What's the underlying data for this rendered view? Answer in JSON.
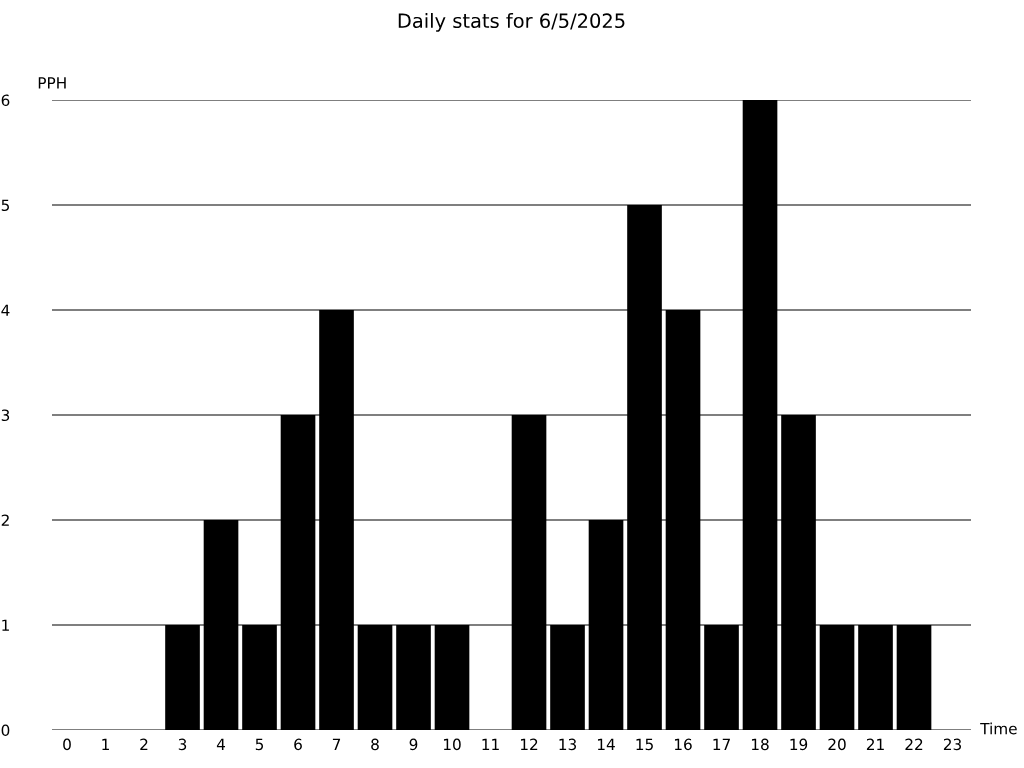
{
  "chart_data": {
    "type": "bar",
    "title": "Daily stats for 6/5/2025",
    "xlabel": "Time",
    "ylabel": "PPH",
    "categories": [
      "0",
      "1",
      "2",
      "3",
      "4",
      "5",
      "6",
      "7",
      "8",
      "9",
      "10",
      "11",
      "12",
      "13",
      "14",
      "15",
      "16",
      "17",
      "18",
      "19",
      "20",
      "21",
      "22",
      "23"
    ],
    "values": [
      0,
      0,
      0,
      1,
      2,
      1,
      3,
      4,
      1,
      1,
      1,
      0,
      3,
      1,
      2,
      5,
      4,
      1,
      6,
      3,
      1,
      1,
      1,
      0
    ],
    "color": "#000000",
    "ylim": [
      0,
      6
    ],
    "yticks": [
      0,
      1,
      2,
      3,
      4,
      5,
      6
    ],
    "grid": "y",
    "legend": false
  }
}
